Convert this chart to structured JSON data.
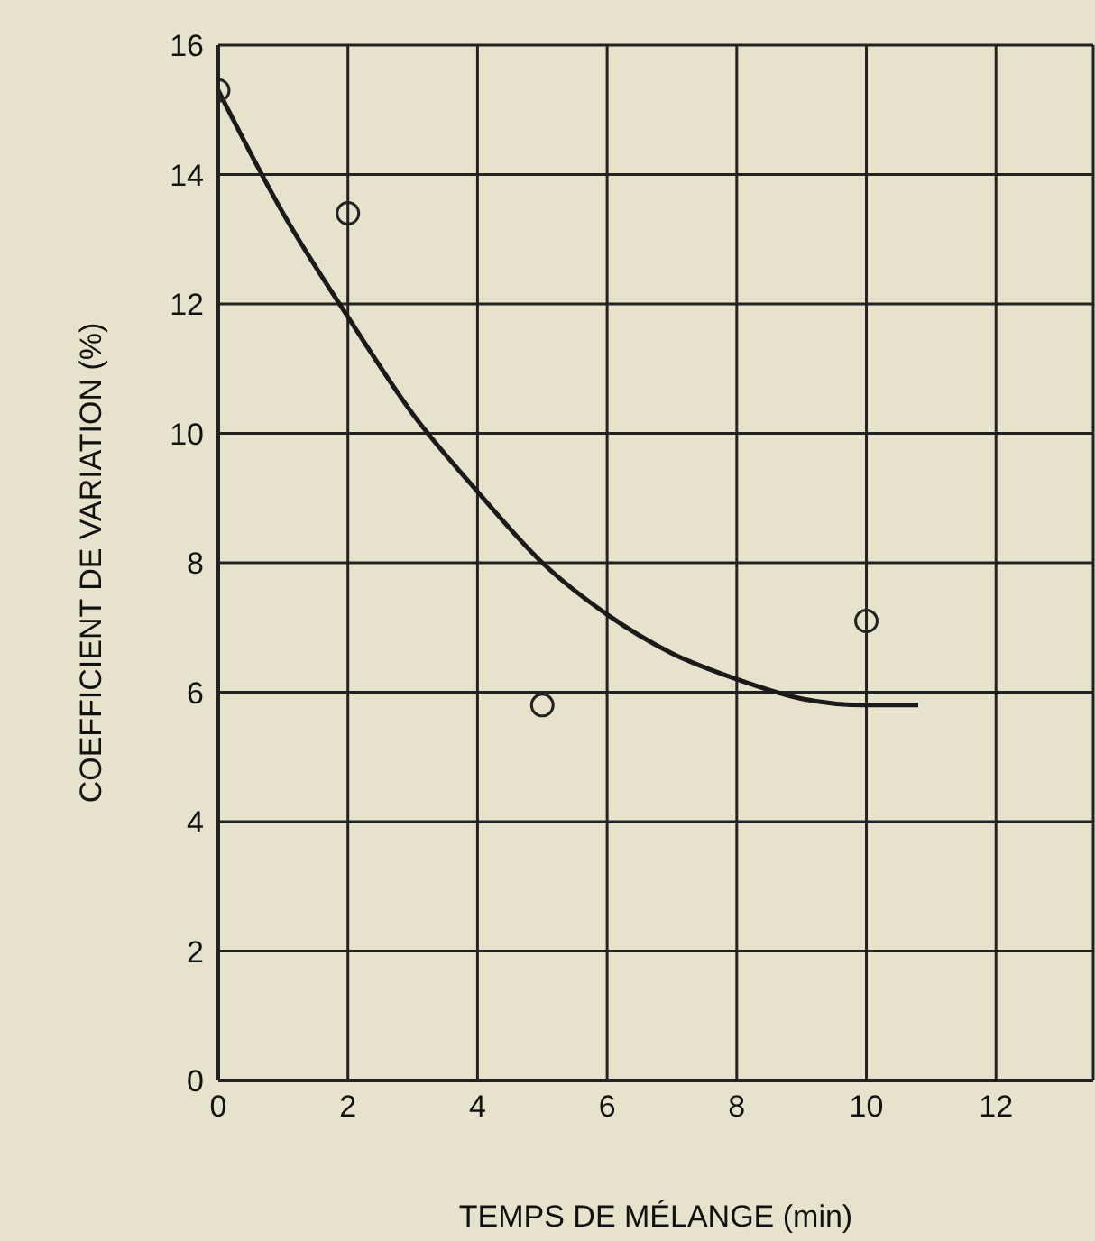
{
  "chart_data": {
    "type": "scatter",
    "xlabel": "TEMPS DE MÉLANGE (min)",
    "ylabel": "COEFFICIENT DE VARIATION (%)",
    "xlim": [
      0,
      13.5
    ],
    "xticks": [
      0,
      2,
      4,
      6,
      8,
      10,
      12
    ],
    "ylim": [
      0,
      16
    ],
    "yticks": [
      0,
      2,
      4,
      6,
      8,
      10,
      12,
      14,
      16
    ],
    "grid": true,
    "series": [
      {
        "type": "scatter",
        "color": "#222222",
        "marker": "circle",
        "x": [
          0,
          2,
          5,
          10
        ],
        "values": [
          15.3,
          13.4,
          5.8,
          7.1
        ]
      },
      {
        "type": "line",
        "color": "#1a1a1a",
        "marker": "none",
        "line_style": "solid",
        "x": [
          0,
          1,
          2,
          3,
          4,
          5,
          6,
          7,
          8,
          9,
          10,
          10.8
        ],
        "values": [
          15.3,
          13.4,
          11.8,
          10.3,
          9.1,
          8.0,
          7.2,
          6.6,
          6.2,
          5.9,
          5.8,
          5.8
        ]
      }
    ]
  }
}
